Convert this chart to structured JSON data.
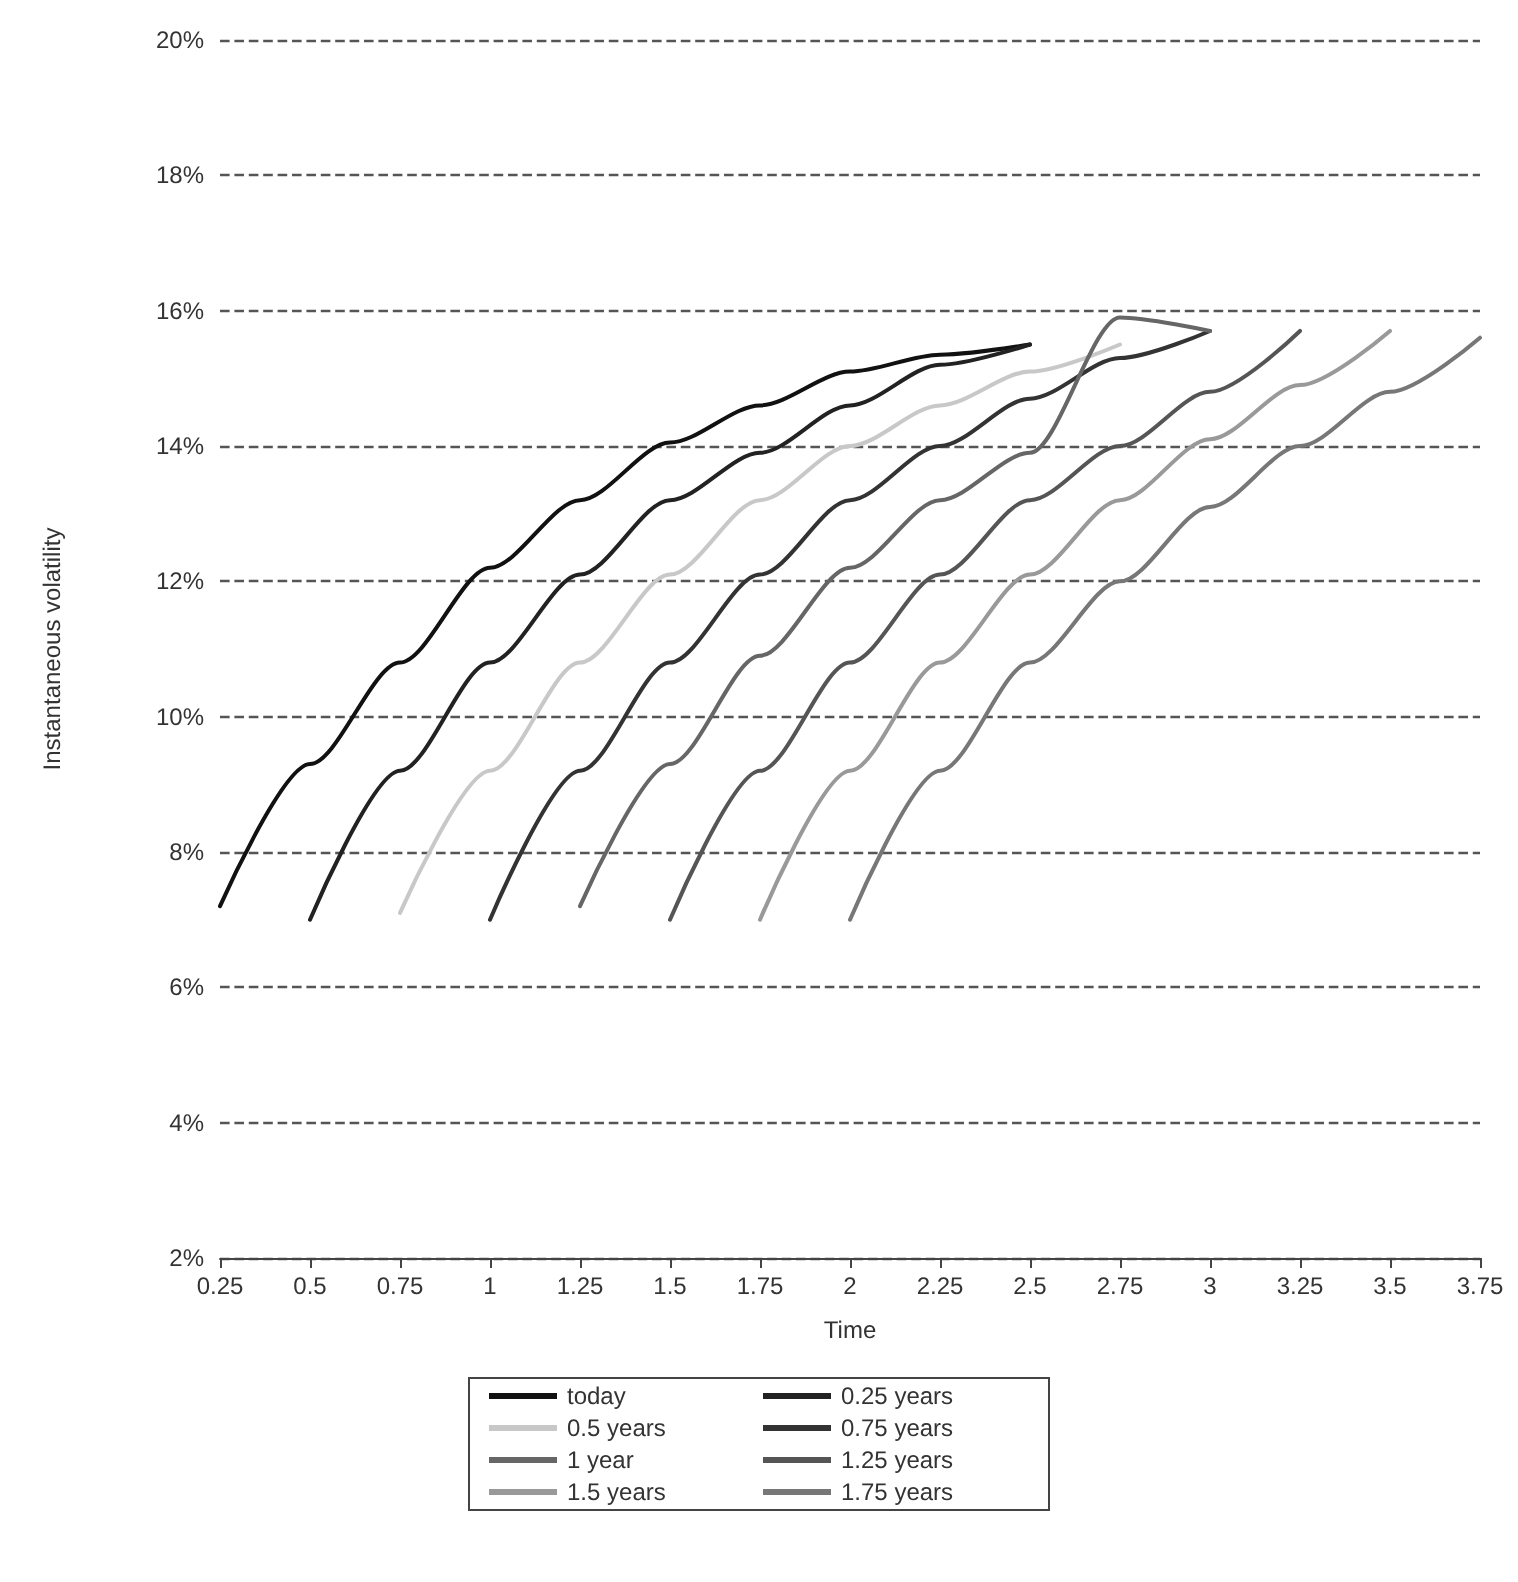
{
  "chart_data": {
    "type": "line",
    "xlabel": "Time",
    "ylabel": "Instantaneous volatility",
    "xlim": [
      0.25,
      3.75
    ],
    "xticks": [
      0.25,
      0.5,
      0.75,
      1,
      1.25,
      1.5,
      1.75,
      2,
      2.25,
      2.5,
      2.75,
      3,
      3.25,
      3.5,
      3.75
    ],
    "ylim": [
      2,
      20
    ],
    "yticks": [
      {
        "value": 2,
        "label": "2%"
      },
      {
        "value": 4,
        "label": "4%"
      },
      {
        "value": 6,
        "label": "6%"
      },
      {
        "value": 8,
        "label": "8%"
      },
      {
        "value": 10,
        "label": "10%"
      },
      {
        "value": 12,
        "label": "12%"
      },
      {
        "value": 14,
        "label": "14%"
      },
      {
        "value": 16,
        "label": "16%"
      },
      {
        "value": 18,
        "label": "18%"
      },
      {
        "value": 20,
        "label": "20%"
      }
    ],
    "grid": "y",
    "legend": "bottom",
    "marker": "none",
    "line_style": "solid",
    "series": [
      {
        "name": "today",
        "color": "#111111",
        "x": [
          0.25,
          0.5,
          0.75,
          1,
          1.25,
          1.5,
          1.75,
          2,
          2.25,
          2.5
        ],
        "values": [
          7.2,
          9.3,
          10.8,
          12.2,
          13.2,
          14.05,
          14.6,
          15.1,
          15.35,
          15.5
        ]
      },
      {
        "name": "0.25 years",
        "color": "#222222",
        "x": [
          0.5,
          0.75,
          1,
          1.25,
          1.5,
          1.75,
          2,
          2.25,
          2.5
        ],
        "values": [
          7.0,
          9.2,
          10.8,
          12.1,
          13.2,
          13.9,
          14.6,
          15.2,
          15.5
        ]
      },
      {
        "name": "0.5 years",
        "color": "#c8c8c8",
        "x": [
          0.75,
          1,
          1.25,
          1.5,
          1.75,
          2,
          2.25,
          2.5,
          2.75
        ],
        "values": [
          7.1,
          9.2,
          10.8,
          12.1,
          13.2,
          14.0,
          14.6,
          15.1,
          15.5
        ]
      },
      {
        "name": "0.75 years",
        "color": "#333333",
        "x": [
          1,
          1.25,
          1.5,
          1.75,
          2,
          2.25,
          2.5,
          2.75,
          3
        ],
        "values": [
          7.0,
          9.2,
          10.8,
          12.1,
          13.2,
          14.0,
          14.7,
          15.3,
          15.7
        ]
      },
      {
        "name": "1 year",
        "color": "#666666",
        "x": [
          1.25,
          1.5,
          1.75,
          2,
          2.25,
          2.5,
          2.75,
          3
        ],
        "values": [
          7.2,
          9.3,
          10.9,
          12.2,
          13.2,
          13.9,
          15.9,
          15.7
        ]
      },
      {
        "name": "1.25 years",
        "color": "#555555",
        "x": [
          1.5,
          1.75,
          2,
          2.25,
          2.5,
          2.75,
          3,
          3.25
        ],
        "values": [
          7.0,
          9.2,
          10.8,
          12.1,
          13.2,
          14.0,
          14.8,
          15.7
        ]
      },
      {
        "name": "1.5 years",
        "color": "#999999",
        "x": [
          1.75,
          2,
          2.25,
          2.5,
          2.75,
          3,
          3.25,
          3.5
        ],
        "values": [
          7.0,
          9.2,
          10.8,
          12.1,
          13.2,
          14.1,
          14.9,
          15.7
        ]
      },
      {
        "name": "1.75 years",
        "color": "#777777",
        "x": [
          2,
          2.25,
          2.5,
          2.75,
          3,
          3.25,
          3.5,
          3.75
        ],
        "values": [
          7.0,
          9.2,
          10.8,
          12.0,
          13.1,
          14.0,
          14.8,
          15.6
        ]
      }
    ]
  }
}
